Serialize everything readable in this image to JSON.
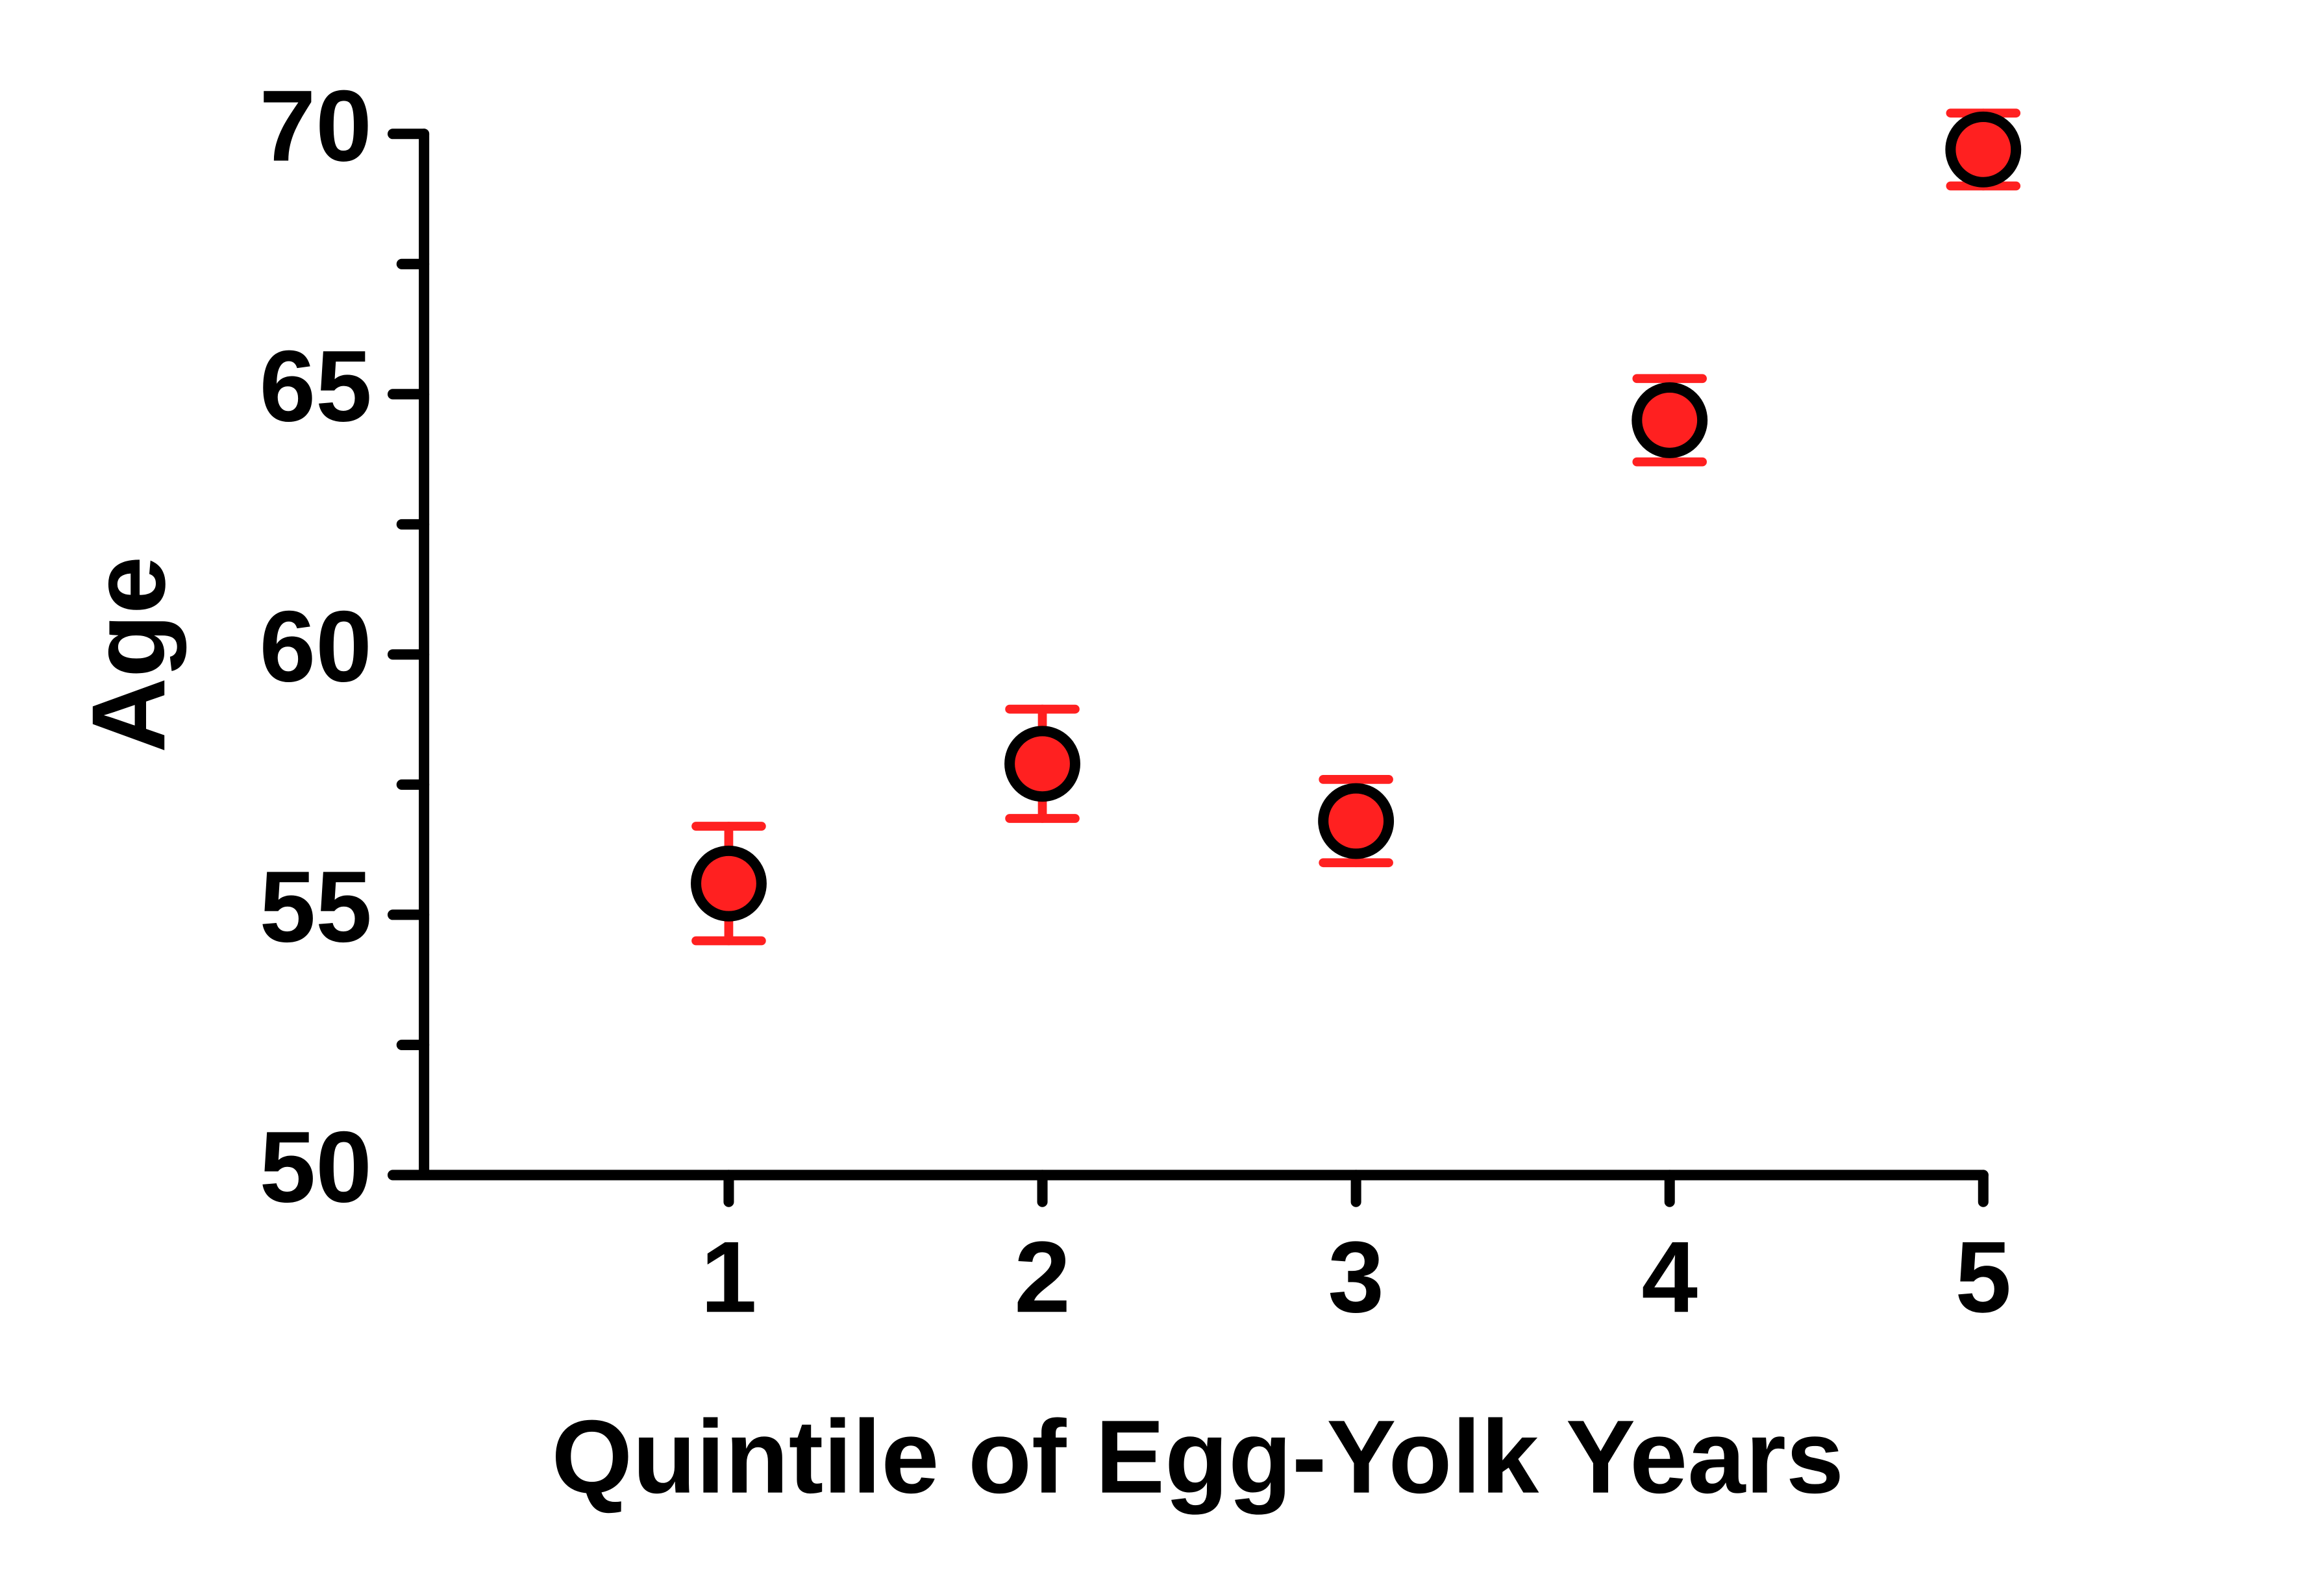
{
  "chart_data": {
    "type": "scatter",
    "x_label": "Quintile of Egg-Yolk Years",
    "y_label": "Age",
    "x": [
      1,
      2,
      3,
      4,
      5
    ],
    "values": [
      55.6,
      57.9,
      56.8,
      64.5,
      69.7
    ],
    "errors": [
      1.1,
      1.05,
      0.8,
      0.8,
      0.7
    ],
    "color": "#ff2020",
    "edge_color": "#000000",
    "xlim": [
      0,
      5
    ],
    "xticks": [
      1,
      2,
      3,
      4,
      5
    ],
    "ylim": [
      50,
      70
    ],
    "yticks": [
      50,
      55,
      60,
      65,
      70
    ],
    "yminorticks": [
      52.5,
      57.5,
      62.5,
      67.5
    ]
  }
}
